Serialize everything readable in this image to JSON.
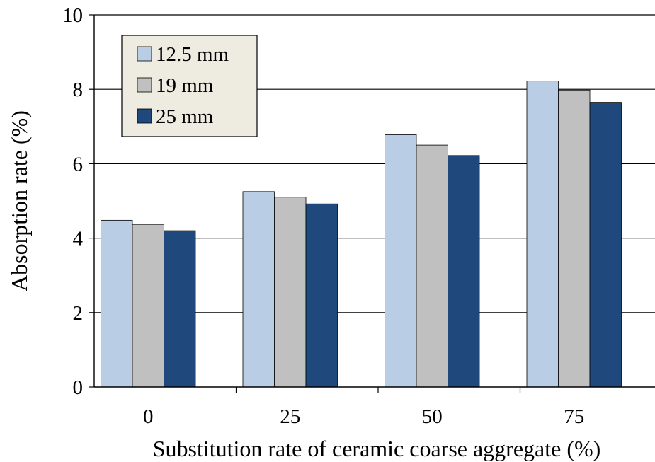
{
  "chart_data": {
    "type": "bar",
    "xlabel": "Substitution rate of ceramic coarse aggregate (%)",
    "ylabel": "Absorption rate (%)",
    "ylim": [
      0,
      10
    ],
    "yticks": [
      "0",
      "2",
      "4",
      "6",
      "8",
      "10"
    ],
    "categories": [
      "0",
      "25",
      "50",
      "75"
    ],
    "grid": true,
    "legend_position": "top-left",
    "series": [
      {
        "name": "12.5 mm",
        "color": "#b9cde5",
        "values": [
          4.48,
          5.25,
          6.78,
          8.22
        ]
      },
      {
        "name": "19 mm",
        "color": "#c0c0c0",
        "values": [
          4.37,
          5.1,
          6.5,
          7.98
        ]
      },
      {
        "name": "25 mm",
        "color": "#1f497d",
        "values": [
          4.2,
          4.92,
          6.22,
          7.65
        ]
      }
    ]
  }
}
